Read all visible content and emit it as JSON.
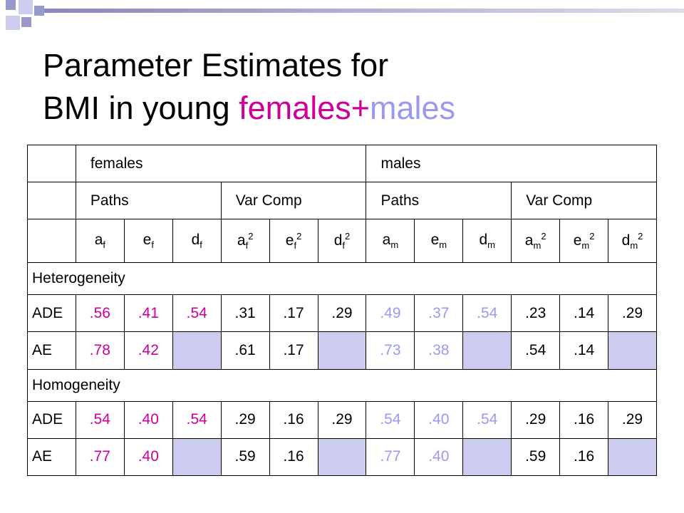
{
  "header": {
    "title_line1": "Parameter Estimates for",
    "title_line2_prefix": "BMI in young ",
    "title_females": "females",
    "title_plus": "+",
    "title_males": "males"
  },
  "table": {
    "group_headers": [
      "females",
      "males"
    ],
    "sub_headers": [
      "Paths",
      "Var Comp",
      "Paths",
      "Var Comp"
    ],
    "symbols": [
      {
        "base": "a",
        "sub": "f"
      },
      {
        "base": "e",
        "sub": "f"
      },
      {
        "base": "d",
        "sub": "f"
      },
      {
        "base": "a",
        "sub": "f",
        "sup": "2"
      },
      {
        "base": "e",
        "sub": "f",
        "sup": "2"
      },
      {
        "base": "d",
        "sub": "f",
        "sup": "2"
      },
      {
        "base": "a",
        "sub": "m"
      },
      {
        "base": "e",
        "sub": "m"
      },
      {
        "base": "d",
        "sub": "m"
      },
      {
        "base": "a",
        "sub": "m",
        "sup": "2"
      },
      {
        "base": "e",
        "sub": "m",
        "sup": "2"
      },
      {
        "base": "d",
        "sub": "m",
        "sup": "2"
      }
    ],
    "sections": [
      {
        "label": "Heterogeneity",
        "rows": [
          {
            "model": "ADE",
            "cells": [
              ".56",
              ".41",
              ".54",
              ".31",
              ".17",
              ".29",
              ".49",
              ".37",
              ".54",
              ".23",
              ".14",
              ".29"
            ]
          },
          {
            "model": "AE",
            "cells": [
              ".78",
              ".42",
              null,
              ".61",
              ".17",
              null,
              ".73",
              ".38",
              null,
              ".54",
              ".14",
              null
            ]
          }
        ]
      },
      {
        "label": "Homogeneity",
        "rows": [
          {
            "model": "ADE",
            "cells": [
              ".54",
              ".40",
              ".54",
              ".29",
              ".16",
              ".29",
              ".54",
              ".40",
              ".54",
              ".29",
              ".16",
              ".29"
            ]
          },
          {
            "model": "AE",
            "cells": [
              ".77",
              ".40",
              null,
              ".59",
              ".16",
              null,
              ".77",
              ".40",
              null,
              ".59",
              ".16",
              null
            ]
          }
        ]
      }
    ]
  }
}
